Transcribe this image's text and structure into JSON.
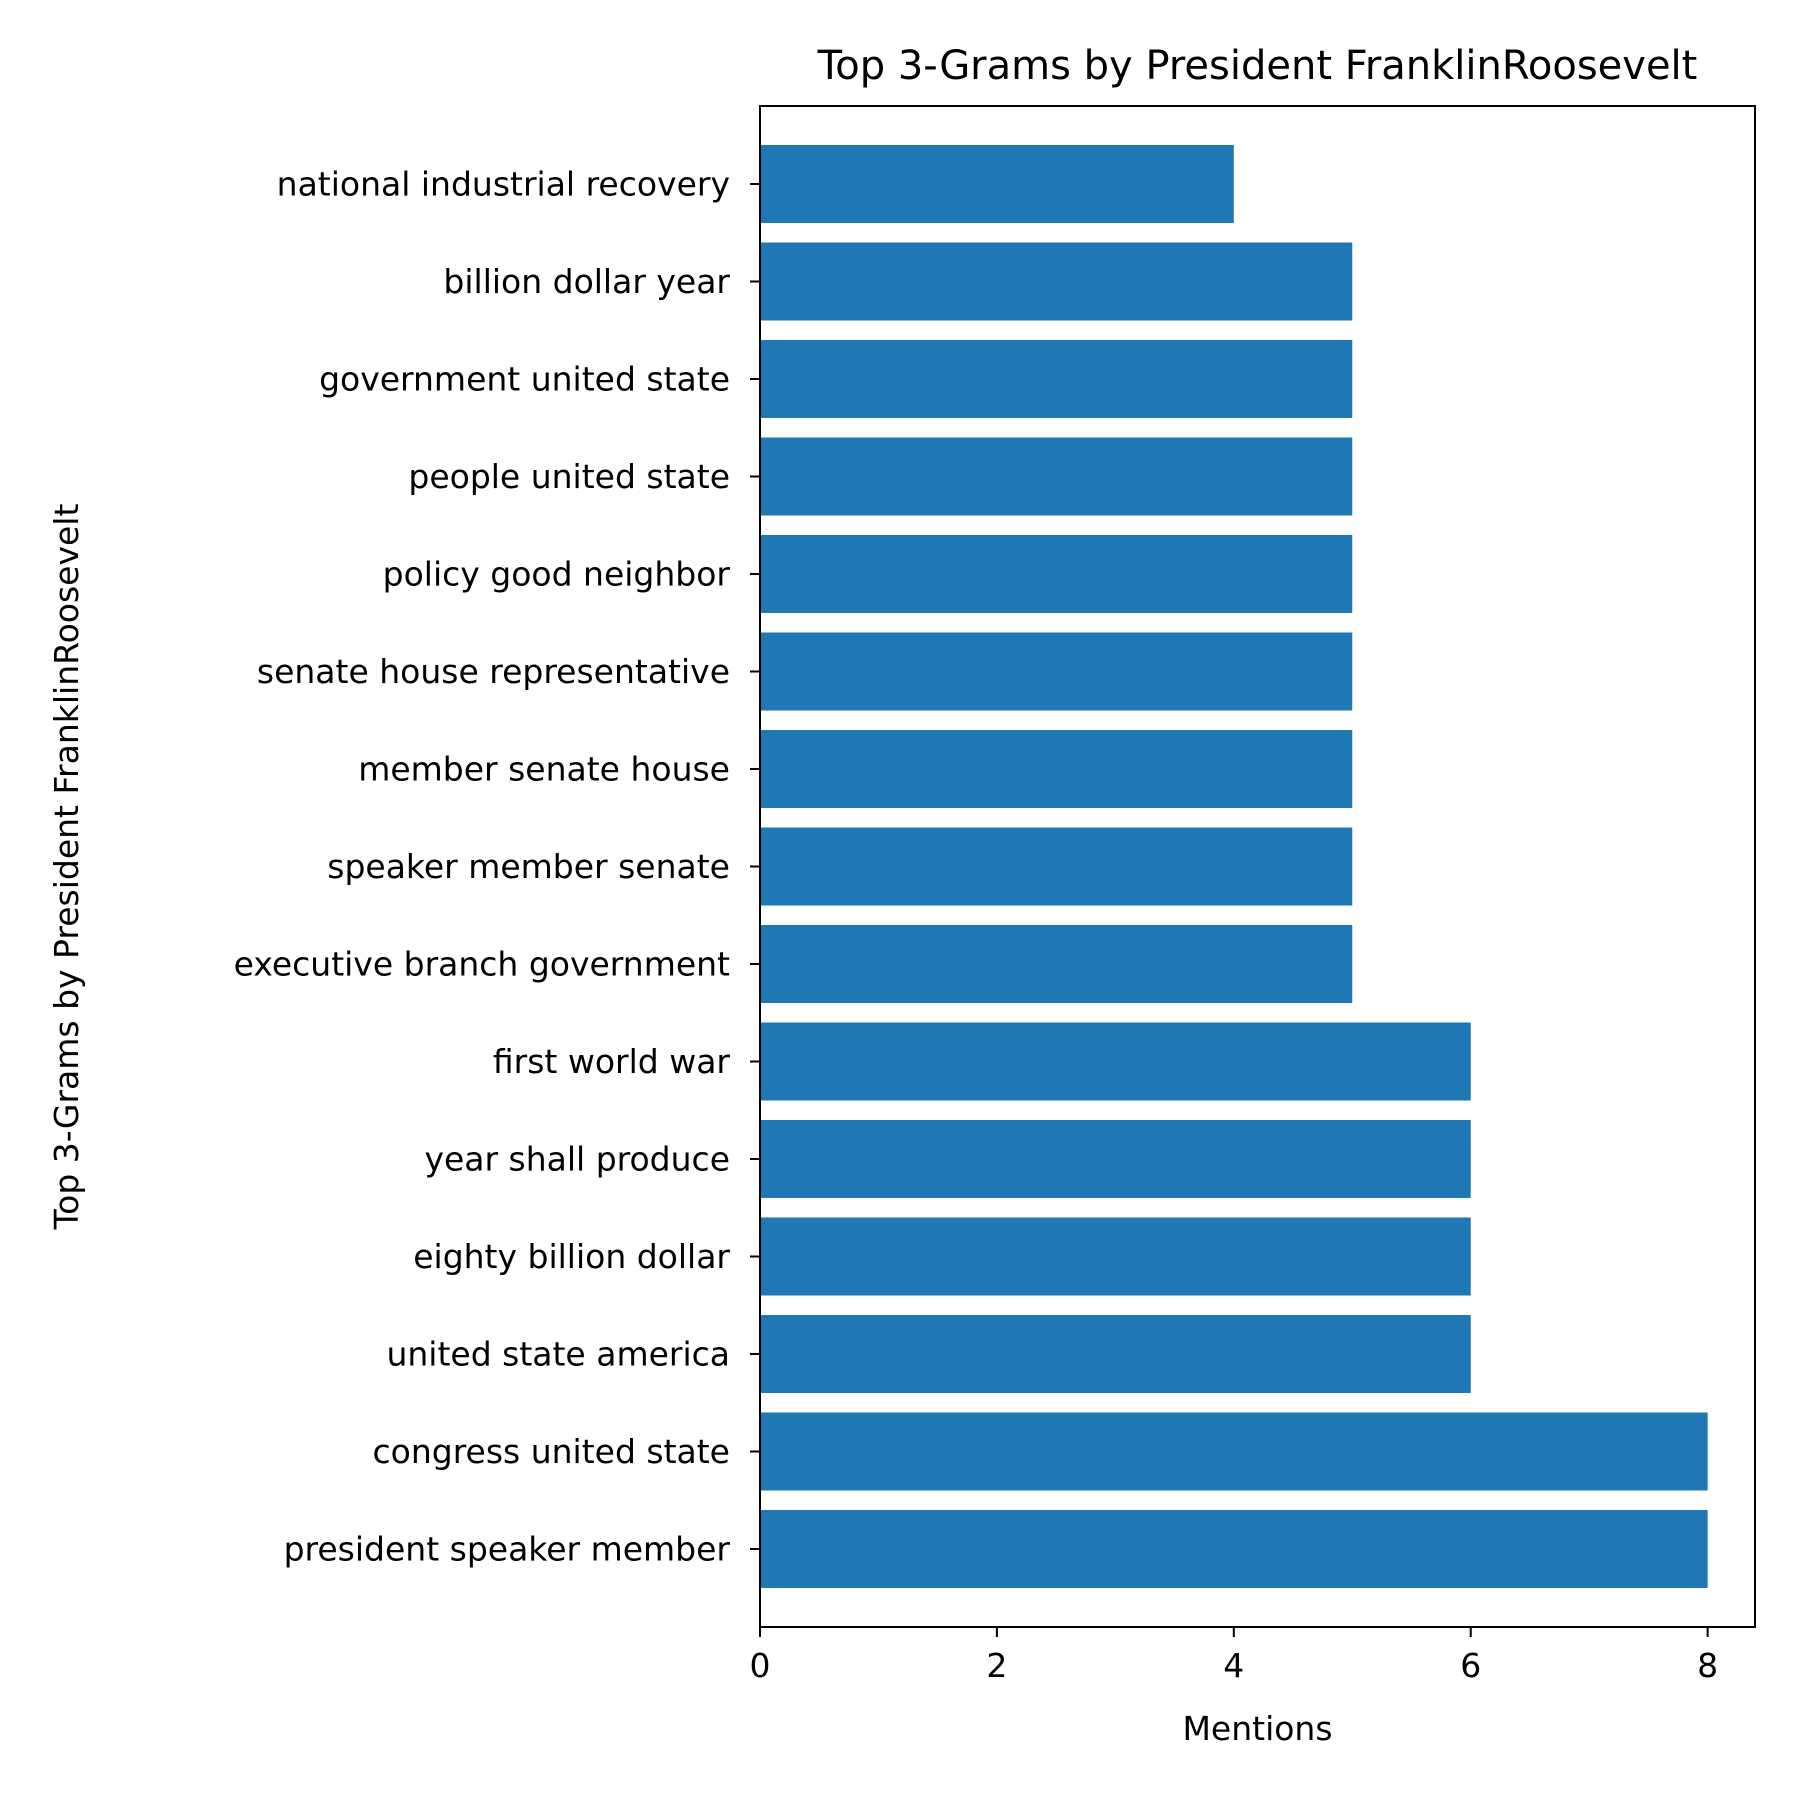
{
  "chart_data": {
    "type": "bar",
    "orientation": "horizontal",
    "title": "Top 3-Grams by President FranklinRoosevelt",
    "xlabel": "Mentions",
    "ylabel": "Top 3-Grams by President FranklinRoosevelt",
    "categories": [
      "national industrial recovery",
      "billion dollar year",
      "government united state",
      "people united state",
      "policy good neighbor",
      "senate house representative",
      "member senate house",
      "speaker member senate",
      "executive branch government",
      "first world war",
      "year shall produce",
      "eighty billion dollar",
      "united state america",
      "congress united state",
      "president speaker member"
    ],
    "values": [
      4,
      5,
      5,
      5,
      5,
      5,
      5,
      5,
      5,
      6,
      6,
      6,
      6,
      8,
      8
    ],
    "xlim": [
      0,
      8.4
    ],
    "xticks": [
      0,
      2,
      4,
      6,
      8
    ],
    "grid": false,
    "legend": "none",
    "bar_color": "#1f77b4"
  }
}
